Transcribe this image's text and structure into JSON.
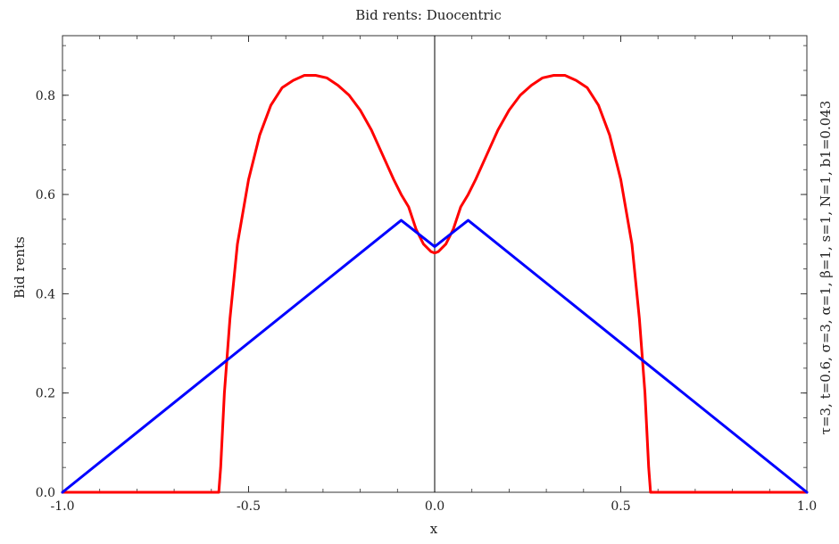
{
  "chart_data": {
    "type": "line",
    "title": "Bid rents: Duocentric",
    "xlabel": "x",
    "ylabel": "Bid rents",
    "annotation": "τ=3, t=0.6, σ=3, α=1, β=1, s=1, N=1, b1=0.043",
    "xlim": [
      -1.0,
      1.0
    ],
    "ylim": [
      0.0,
      0.92
    ],
    "x_ticks": [
      -1.0,
      -0.5,
      0.0,
      0.5,
      1.0
    ],
    "x_tick_labels": [
      "-1.0",
      "-0.5",
      "0.0",
      "0.5",
      "1.0"
    ],
    "y_ticks": [
      0.0,
      0.2,
      0.4,
      0.6,
      0.8
    ],
    "y_tick_labels": [
      "0.0",
      "0.2",
      "0.4",
      "0.6",
      "0.8"
    ],
    "grid": false,
    "series": [
      {
        "color": "#ff0000",
        "x": [
          -1.0,
          -0.58,
          -0.575,
          -0.565,
          -0.55,
          -0.53,
          -0.5,
          -0.47,
          -0.44,
          -0.41,
          -0.38,
          -0.35,
          -0.32,
          -0.29,
          -0.26,
          -0.23,
          -0.2,
          -0.17,
          -0.14,
          -0.11,
          -0.09,
          -0.07,
          -0.05,
          -0.03,
          -0.01,
          0.0,
          0.01,
          0.03,
          0.05,
          0.07,
          0.09,
          0.11,
          0.14,
          0.17,
          0.2,
          0.23,
          0.26,
          0.29,
          0.32,
          0.35,
          0.38,
          0.41,
          0.44,
          0.47,
          0.5,
          0.53,
          0.55,
          0.565,
          0.575,
          0.58,
          1.0
        ],
        "y": [
          0.0,
          0.0,
          0.05,
          0.2,
          0.35,
          0.5,
          0.63,
          0.72,
          0.78,
          0.815,
          0.83,
          0.84,
          0.84,
          0.835,
          0.82,
          0.8,
          0.77,
          0.73,
          0.68,
          0.63,
          0.6,
          0.575,
          0.53,
          0.5,
          0.485,
          0.482,
          0.485,
          0.5,
          0.53,
          0.575,
          0.6,
          0.63,
          0.68,
          0.73,
          0.77,
          0.8,
          0.82,
          0.835,
          0.84,
          0.84,
          0.83,
          0.815,
          0.78,
          0.72,
          0.63,
          0.5,
          0.35,
          0.2,
          0.05,
          0.0,
          0.0
        ]
      },
      {
        "color": "#0000ff",
        "x": [
          -1.0,
          -0.09,
          0.0,
          0.09,
          1.0
        ],
        "y": [
          0.0,
          0.548,
          0.495,
          0.548,
          0.0
        ]
      }
    ]
  }
}
